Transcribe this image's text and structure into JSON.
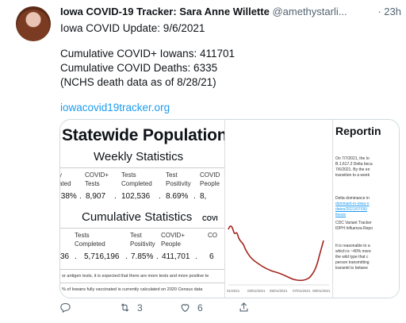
{
  "tweet": {
    "display_name": "Iowa COVID-19 Tracker: Sara Anne Willette",
    "handle": "@amethystarli...",
    "time": "· 23h",
    "lines": [
      "Iowa COVID Update: 9/6/2021",
      "Cumulative COVID+ Iowans: 411701",
      "Cumulative COVID Deaths: 6335",
      "(NCHS death data as of 8/28/21)"
    ],
    "link": "iowacovid19tracker.org"
  },
  "card": {
    "title": "Statewide Population:",
    "weekly_title": "Weekly Statistics",
    "weekly_headers": [
      "y\nated",
      "COVID+\nTests",
      "Tests\nCompleted",
      "Test\nPositivity",
      "COVID\nPeople"
    ],
    "weekly_values": [
      ".38%",
      "8,907",
      "102,536",
      "8.69%",
      "8,"
    ],
    "cumulative_title": "Cumulative Statistics",
    "covid_tag": "COVI",
    "cumulative_headers": [
      "Tests\nCompleted",
      "Test\nPositivity",
      "COVID+\nPeople",
      "CO"
    ],
    "cumulative_values": [
      "36",
      "5,716,196",
      "7.85%",
      "411,701",
      "6"
    ],
    "note1": "or antigen tests, it is expected that there are more tests and more positive te",
    "note2": "% of Iowans fully vaccinated is currently calculated on 2020 Census data",
    "chart_ticks": [
      "01/2021",
      "03/01/2021",
      "05/01/2021",
      "07/01/2021",
      "09/01/2021"
    ],
    "report_title": "Reportin",
    "report_lines": [
      {
        "text": "On 7/7/2021, the Io",
        "link": false
      },
      {
        "text": "B.1.617.2 Delta beca",
        "link": false
      },
      {
        "text": "7/6/2021. By the en",
        "link": false
      },
      {
        "text": "transition to a week",
        "link": false
      },
      {
        "text": "Delta dominance in",
        "link": false
      },
      {
        "text": "dominant-in-iowa-n",
        "link": true
      },
      {
        "text": "dates/2021/07/06/",
        "link": true
      },
      {
        "text": "thesis",
        "link": true
      },
      {
        "text": "CDC Variant Tracker",
        "link": false
      },
      {
        "text": "IDPH Influenza Repo",
        "link": false
      },
      {
        "text": "It is reasonable to a",
        "link": false
      },
      {
        "text": "which is ~40% more",
        "link": false
      },
      {
        "text": "the wild type that c",
        "link": false
      },
      {
        "text": "person transmitting",
        "link": false
      },
      {
        "text": "transmit to betwee",
        "link": false
      }
    ]
  },
  "actions": {
    "retweets": "3",
    "likes": "6"
  },
  "colors": {
    "link": "#1d9bf0",
    "muted": "#536471",
    "chart_line": "#a3261f"
  }
}
